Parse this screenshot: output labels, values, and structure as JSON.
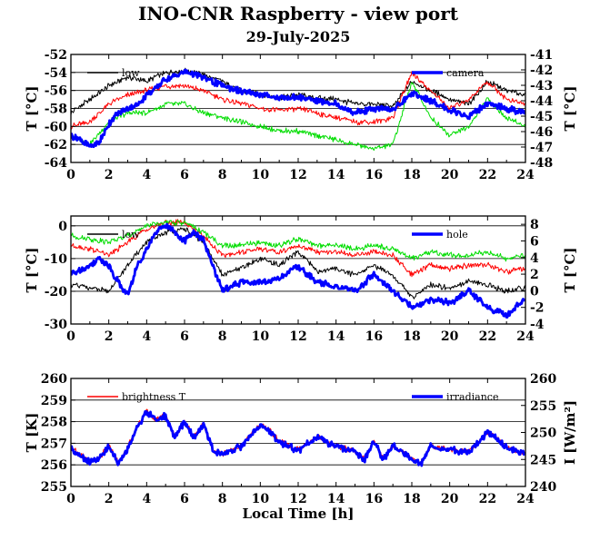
{
  "title": "INO-CNR Raspberry - view port",
  "subtitle": "29-July-2025",
  "colors": {
    "black": "#000000",
    "red": "#ff0000",
    "green": "#00dd00",
    "blue": "#0000ff"
  },
  "chart_data": [
    {
      "type": "line",
      "xlim": [
        0,
        24
      ],
      "xticks": [
        "0",
        "2",
        "4",
        "6",
        "8",
        "10",
        "12",
        "14",
        "16",
        "18",
        "20",
        "22",
        "24"
      ],
      "ylabel": "T [°C]",
      "ylim": [
        -64,
        -52
      ],
      "yticks": [
        "-64",
        "-62",
        "-60",
        "-58",
        "-56",
        "-54",
        "-52"
      ],
      "y2label": "T [°C]",
      "y2lim": [
        -48,
        -41
      ],
      "y2ticks": [
        "-48",
        "-47",
        "-46",
        "-45",
        "-44",
        "-43",
        "-42",
        "-41"
      ],
      "grid": true,
      "legend": [
        {
          "label": "low",
          "color": "#000000",
          "position": "top-left"
        },
        {
          "label": "camera",
          "color": "#0000ff",
          "position": "top-right"
        }
      ],
      "series": [
        {
          "name": "low",
          "color": "#000000",
          "axis": "left",
          "x": [
            0,
            1,
            2,
            3,
            4,
            5,
            6,
            7,
            8,
            9,
            10,
            11,
            12,
            13,
            14,
            15,
            16,
            17,
            18,
            19,
            20,
            21,
            22,
            23,
            24
          ],
          "y": [
            -58.5,
            -57,
            -55.5,
            -54.5,
            -55,
            -54,
            -53.8,
            -54.2,
            -55,
            -56,
            -56.5,
            -56.8,
            -56.5,
            -56.8,
            -57,
            -57.5,
            -57.5,
            -57.8,
            -55,
            -56,
            -57,
            -57.5,
            -55,
            -56,
            -56.5
          ]
        },
        {
          "color": "#ff0000",
          "axis": "left",
          "x": [
            0,
            1,
            2,
            3,
            4,
            5,
            6,
            7,
            8,
            9,
            10,
            11,
            12,
            13,
            14,
            15,
            16,
            17,
            18,
            19,
            20,
            21,
            22,
            23,
            24
          ],
          "y": [
            -60,
            -59.5,
            -57.5,
            -56.5,
            -56,
            -55.5,
            -55.5,
            -56,
            -57,
            -57.5,
            -58,
            -58.2,
            -58,
            -58.5,
            -59,
            -59.5,
            -59.5,
            -59,
            -54,
            -56,
            -58,
            -57,
            -55,
            -57,
            -57.5
          ]
        },
        {
          "color": "#00dd00",
          "axis": "left",
          "x": [
            0,
            1,
            2,
            3,
            4,
            5,
            6,
            7,
            8,
            9,
            10,
            11,
            12,
            13,
            14,
            15,
            16,
            17,
            18,
            19,
            20,
            21,
            22,
            23,
            24
          ],
          "y": [
            -61,
            -62,
            -59.5,
            -58.5,
            -58.5,
            -57.5,
            -57.5,
            -58.5,
            -59,
            -59.5,
            -60,
            -60.5,
            -60.5,
            -61,
            -61.5,
            -62,
            -62.5,
            -62,
            -55,
            -59,
            -61,
            -60,
            -57,
            -59,
            -60
          ]
        },
        {
          "name": "camera",
          "color": "#0000ff",
          "axis": "right",
          "x": [
            0,
            0.5,
            1,
            1.5,
            2,
            2.5,
            3,
            3.5,
            4,
            4.5,
            5,
            5.5,
            6,
            6.5,
            7,
            8,
            9,
            10,
            11,
            12,
            13,
            14,
            15,
            16,
            17,
            18,
            19,
            20,
            21,
            22,
            23,
            24
          ],
          "y": [
            -46.3,
            -46.5,
            -47,
            -46.7,
            -45.5,
            -44.8,
            -44.5,
            -44.3,
            -43.6,
            -43.2,
            -42.6,
            -42.4,
            -42.1,
            -42.3,
            -42.5,
            -43,
            -43.4,
            -43.6,
            -43.8,
            -43.8,
            -44,
            -44.2,
            -44.8,
            -44.5,
            -44.6,
            -43.5,
            -44,
            -44.6,
            -45,
            -44.2,
            -44.5,
            -44.8
          ]
        }
      ]
    },
    {
      "type": "line",
      "xlim": [
        0,
        24
      ],
      "xticks": [
        "0",
        "2",
        "4",
        "6",
        "8",
        "10",
        "12",
        "14",
        "16",
        "18",
        "20",
        "22",
        "24"
      ],
      "ylabel": "T [°C]",
      "ylim": [
        -30,
        3
      ],
      "yticks": [
        "-30",
        "-20",
        "-10",
        "0"
      ],
      "y2label": "T [°C]",
      "y2lim": [
        -4,
        9
      ],
      "y2ticks": [
        "-4",
        "-2",
        "0",
        "2",
        "4",
        "6",
        "8"
      ],
      "grid": true,
      "legend": [
        {
          "label": "low",
          "color": "#000000",
          "position": "top-left"
        },
        {
          "label": "hole",
          "color": "#0000ff",
          "position": "top-right"
        }
      ],
      "series": [
        {
          "name": "low",
          "color": "#000000",
          "axis": "left",
          "x": [
            0,
            1,
            2,
            3,
            4,
            5,
            6,
            7,
            8,
            9,
            10,
            11,
            12,
            13,
            14,
            15,
            16,
            17,
            18,
            19,
            20,
            21,
            22,
            23,
            24
          ],
          "y": [
            -18,
            -19,
            -20,
            -12,
            -5,
            -2,
            -1,
            -5,
            -15,
            -13,
            -10,
            -12,
            -8,
            -14,
            -13,
            -15,
            -12,
            -15,
            -22,
            -18,
            -19,
            -17,
            -18,
            -20,
            -19
          ]
        },
        {
          "color": "#ff0000",
          "axis": "left",
          "x": [
            0,
            1,
            2,
            3,
            4,
            5,
            6,
            7,
            8,
            9,
            10,
            11,
            12,
            13,
            14,
            15,
            16,
            17,
            18,
            19,
            20,
            21,
            22,
            23,
            24
          ],
          "y": [
            -6,
            -7,
            -9,
            -5,
            -1,
            1,
            1,
            -3,
            -9,
            -8,
            -7,
            -8,
            -6,
            -8,
            -8,
            -9,
            -8,
            -9,
            -15,
            -12,
            -13,
            -12,
            -12,
            -14,
            -13
          ]
        },
        {
          "color": "#00dd00",
          "axis": "left",
          "x": [
            0,
            1,
            2,
            3,
            4,
            5,
            6,
            7,
            8,
            9,
            10,
            11,
            12,
            13,
            14,
            15,
            16,
            17,
            18,
            19,
            20,
            21,
            22,
            23,
            24
          ],
          "y": [
            -3,
            -4,
            -5,
            -3,
            0,
            1,
            1,
            -2,
            -6,
            -6,
            -5,
            -6,
            -4,
            -6,
            -6,
            -7,
            -6,
            -7,
            -10,
            -8,
            -9,
            -9,
            -8,
            -10,
            -9
          ]
        },
        {
          "name": "hole",
          "color": "#0000ff",
          "axis": "right",
          "x": [
            0,
            0.5,
            1,
            1.5,
            2,
            2.5,
            3,
            3.5,
            4,
            4.5,
            5,
            5.5,
            6,
            6.5,
            7,
            7.5,
            8,
            9,
            10,
            11,
            12,
            13,
            14,
            15,
            16,
            17,
            18,
            19,
            20,
            21,
            22,
            23,
            24
          ],
          "y": [
            2,
            2.5,
            3,
            4,
            3,
            1,
            -0.5,
            3,
            5,
            7,
            8,
            7,
            6,
            7,
            6,
            3,
            0,
            1,
            1,
            1.5,
            3,
            1,
            0.5,
            0,
            2,
            0,
            -2,
            -1,
            -1.5,
            0,
            -2,
            -3,
            -1
          ]
        }
      ]
    },
    {
      "type": "line",
      "xlim": [
        0,
        24
      ],
      "xticks": [
        "0",
        "2",
        "4",
        "6",
        "8",
        "10",
        "12",
        "14",
        "16",
        "18",
        "20",
        "22",
        "24"
      ],
      "xlabel": "Local Time [h]",
      "ylabel": "T [K]",
      "ylim": [
        255,
        260
      ],
      "yticks": [
        "255",
        "256",
        "257",
        "258",
        "259",
        "260"
      ],
      "y2label": "I [W/m²]",
      "y2lim": [
        240,
        260
      ],
      "y2ticks": [
        "240",
        "245",
        "250",
        "255",
        "260"
      ],
      "grid": true,
      "legend": [
        {
          "label": "brightness T",
          "color": "#ff0000",
          "position": "top-left"
        },
        {
          "label": "irradiance",
          "color": "#0000ff",
          "position": "top-right"
        }
      ],
      "series": [
        {
          "name": "brightness T",
          "color": "#ff0000",
          "axis": "left",
          "x": [
            0,
            0.5,
            1,
            1.5,
            2,
            2.5,
            3,
            3.5,
            4,
            4.5,
            5,
            5.5,
            6,
            6.5,
            7,
            7.5,
            8,
            9,
            10,
            10.5,
            11,
            12,
            13,
            14,
            15,
            15.5,
            16,
            16.5,
            17,
            18,
            18.5,
            19,
            20,
            21,
            22,
            22.5,
            23,
            24
          ],
          "y": [
            256.8,
            256.5,
            256.2,
            256.3,
            256.9,
            256.1,
            256.8,
            257.8,
            258.5,
            258.1,
            258.3,
            257.3,
            258.0,
            257.3,
            257.9,
            256.7,
            256.5,
            256.9,
            257.9,
            257.6,
            257.1,
            256.7,
            257.3,
            256.9,
            256.6,
            256.3,
            257.1,
            256.3,
            256.9,
            256.3,
            256.1,
            256.9,
            256.7,
            256.6,
            257.5,
            257.3,
            256.8,
            256.5
          ]
        },
        {
          "name": "irradiance",
          "color": "#0000ff",
          "axis": "right",
          "x": [
            0,
            0.5,
            1,
            1.5,
            2,
            2.5,
            3,
            3.5,
            4,
            4.5,
            5,
            5.5,
            6,
            6.5,
            7,
            7.5,
            8,
            9,
            10,
            10.5,
            11,
            12,
            13,
            14,
            15,
            15.5,
            16,
            16.5,
            17,
            18,
            18.5,
            19,
            20,
            21,
            22,
            22.5,
            23,
            24
          ],
          "y": [
            247,
            245.8,
            244.5,
            245,
            247.4,
            244.2,
            247,
            251,
            253.8,
            252.3,
            253,
            249,
            252,
            249,
            251.5,
            246.7,
            245.8,
            247.5,
            251.4,
            250.2,
            248.3,
            246.6,
            249.1,
            247.4,
            246.3,
            245,
            248.3,
            245,
            247.6,
            245,
            244.3,
            247.5,
            246.8,
            246.3,
            250,
            249,
            247.1,
            246
          ]
        }
      ]
    }
  ]
}
